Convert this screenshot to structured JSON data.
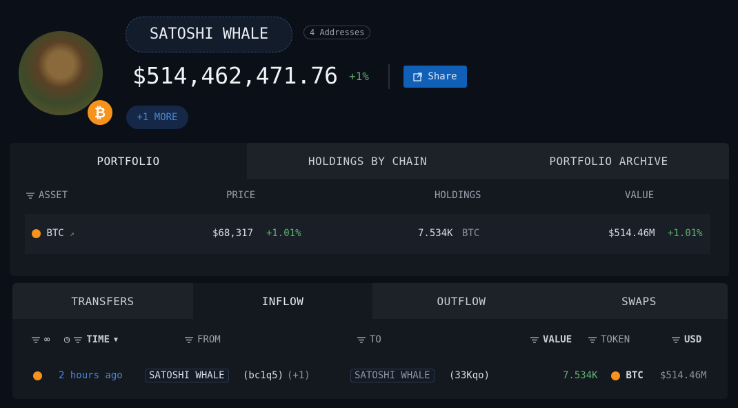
{
  "header": {
    "name": "SATOSHI WHALE",
    "addresses": "4 Addresses",
    "balance": "$514,462,471.76",
    "change": "+1%",
    "share": "Share",
    "more": "+1 MORE"
  },
  "portfolio": {
    "tabs": [
      "PORTFOLIO",
      "HOLDINGS BY CHAIN",
      "PORTFOLIO ARCHIVE"
    ],
    "columns": [
      "ASSET",
      "PRICE",
      "HOLDINGS",
      "VALUE"
    ],
    "rows": [
      {
        "asset": "BTC",
        "price": "$68,317",
        "price_change": "+1.01%",
        "holdings": "7.534K",
        "holdings_unit": "BTC",
        "value": "$514.46M",
        "value_change": "+1.01%"
      }
    ]
  },
  "transfers": {
    "tabs": [
      "TRANSFERS",
      "INFLOW",
      "OUTFLOW",
      "SWAPS"
    ],
    "columns": [
      "TIME",
      "FROM",
      "TO",
      "VALUE",
      "TOKEN",
      "USD"
    ],
    "rows": [
      {
        "time": "2 hours ago",
        "from_entity": "SATOSHI WHALE",
        "from_address": "(bc1q5)",
        "from_more": "(+1)",
        "to_entity": "SATOSHI WHALE",
        "to_address": "(33Kqo)",
        "value": "7.534K",
        "token": "BTC",
        "usd": "$514.46M"
      }
    ]
  }
}
